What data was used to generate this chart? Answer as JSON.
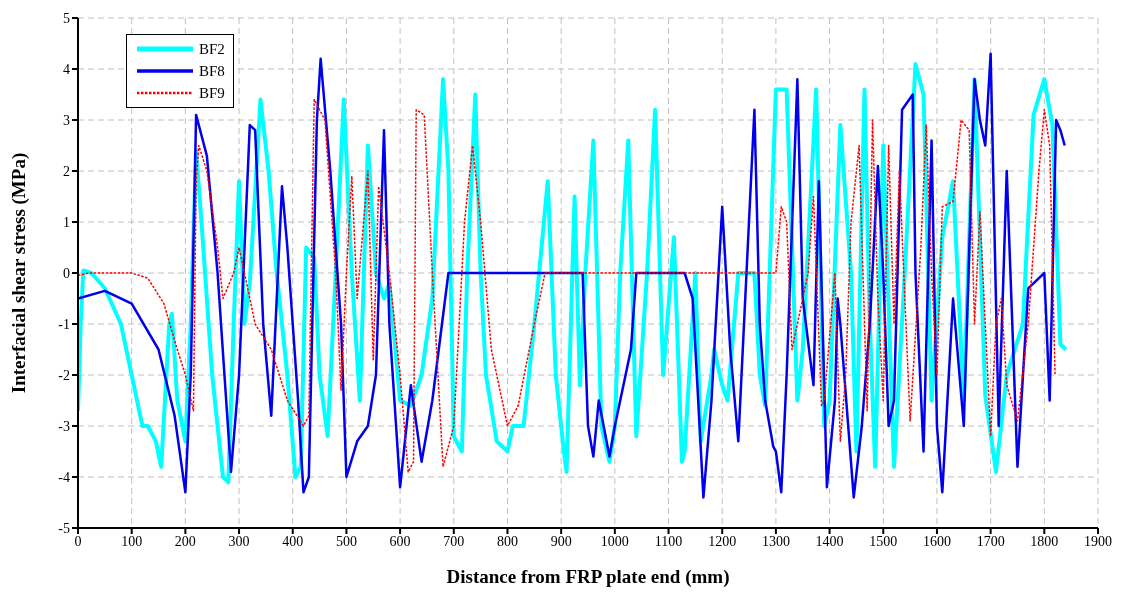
{
  "chart_data": {
    "type": "line",
    "xlabel": "Distance from FRP plate end (mm)",
    "ylabel": "Interfacial shear stress (MPa)",
    "xlim": [
      0,
      1900
    ],
    "xticks": [
      0,
      100,
      200,
      300,
      400,
      500,
      600,
      700,
      800,
      900,
      1000,
      1100,
      1200,
      1300,
      1400,
      1500,
      1600,
      1700,
      1800,
      1900
    ],
    "ylim": [
      -5,
      5
    ],
    "yticks": [
      -5,
      -4,
      -3,
      -2,
      -1,
      0,
      1,
      2,
      3,
      4,
      5
    ],
    "grid": true,
    "legend": "top left",
    "series": [
      {
        "name": "BF2",
        "color": "#00ffff",
        "line_style": "solid",
        "x": [
          0,
          5,
          10,
          25,
          50,
          80,
          100,
          120,
          130,
          145,
          155,
          170,
          175,
          185,
          200,
          210,
          220,
          230,
          250,
          270,
          280,
          290,
          300,
          310,
          320,
          340,
          355,
          370,
          390,
          405,
          415,
          425,
          440,
          450,
          465,
          480,
          495,
          510,
          525,
          540,
          555,
          570,
          580,
          600,
          620,
          640,
          660,
          680,
          690,
          700,
          715,
          725,
          740,
          750,
          760,
          780,
          800,
          810,
          830,
          850,
          875,
          890,
          905,
          910,
          925,
          935,
          945,
          960,
          975,
          990,
          1000,
          1010,
          1025,
          1040,
          1060,
          1075,
          1090,
          1110,
          1125,
          1130,
          1150,
          1160,
          1180,
          1185,
          1200,
          1210,
          1230,
          1260,
          1270,
          1280,
          1300,
          1320,
          1340,
          1350,
          1375,
          1390,
          1400,
          1420,
          1440,
          1450,
          1465,
          1475,
          1485,
          1500,
          1520,
          1540,
          1560,
          1575,
          1590,
          1610,
          1630,
          1650,
          1670,
          1690,
          1710,
          1730,
          1760,
          1780,
          1800,
          1815,
          1830,
          1840
        ],
        "values": [
          -2.7,
          -1,
          0.05,
          0,
          -0.3,
          -1,
          -2,
          -3,
          -3,
          -3.3,
          -3.8,
          -1,
          -0.8,
          -2.5,
          -3.3,
          -1,
          2.4,
          1,
          -2,
          -4,
          -4.1,
          -1,
          1.8,
          -1,
          -0.2,
          3.4,
          2,
          0,
          -2,
          -4,
          -3.8,
          0.5,
          0.3,
          -2,
          -3.2,
          0,
          3.4,
          0,
          -2.5,
          2.5,
          0,
          -0.5,
          -0.2,
          -2.5,
          -2.6,
          -2,
          -0.5,
          3.8,
          2,
          -3.2,
          -3.5,
          0,
          3.5,
          0,
          -2,
          -3.3,
          -3.5,
          -3,
          -3,
          -1,
          1.8,
          -2,
          -3.5,
          -3.9,
          1.5,
          -2.2,
          0,
          2.6,
          -3,
          -3.7,
          -3,
          0,
          2.6,
          -3.2,
          0,
          3.2,
          -2,
          0.7,
          -3.7,
          -3.5,
          0,
          -3.3,
          -2,
          -1.5,
          -2.2,
          -2.5,
          0,
          0,
          -2,
          -2.6,
          3.6,
          3.6,
          -2.5,
          -1.5,
          3.6,
          -3,
          -2.5,
          2.9,
          0,
          -3.5,
          3.6,
          -1,
          -3.8,
          2.5,
          -3.8,
          0,
          4.1,
          3.5,
          -2.5,
          0.7,
          1.8,
          -2.5,
          3.8,
          -2.4,
          -3.9,
          -2,
          -1,
          3.1,
          3.8,
          2.9,
          -1.4,
          -1.5
        ]
      },
      {
        "name": "BF8",
        "color": "#0000ee",
        "line_style": "solid",
        "x": [
          0,
          50,
          100,
          150,
          180,
          200,
          210,
          220,
          240,
          260,
          285,
          300,
          320,
          330,
          345,
          360,
          380,
          390,
          410,
          420,
          430,
          445,
          452,
          470,
          490,
          500,
          520,
          540,
          555,
          570,
          580,
          600,
          620,
          640,
          660,
          690,
          700,
          940,
          950,
          960,
          970,
          990,
          1000,
          1030,
          1040,
          1130,
          1145,
          1165,
          1180,
          1200,
          1215,
          1230,
          1260,
          1270,
          1280,
          1295,
          1300,
          1310,
          1320,
          1340,
          1350,
          1370,
          1380,
          1395,
          1410,
          1415,
          1420,
          1445,
          1460,
          1475,
          1490,
          1500,
          1510,
          1520,
          1535,
          1555,
          1560,
          1575,
          1590,
          1600,
          1610,
          1630,
          1650,
          1670,
          1680,
          1690,
          1700,
          1715,
          1730,
          1750,
          1770,
          1800,
          1810,
          1822,
          1830,
          1838
        ],
        "values": [
          -0.5,
          -0.35,
          -0.6,
          -1.5,
          -2.8,
          -4.3,
          -2,
          3.1,
          2.3,
          0,
          -3.9,
          -2,
          2.9,
          2.8,
          -1,
          -2.8,
          1.7,
          0.5,
          -2.5,
          -4.3,
          -4,
          3,
          4.2,
          2,
          -1,
          -4,
          -3.3,
          -3,
          -2,
          2.8,
          -1,
          -4.2,
          -2.2,
          -3.7,
          -2.5,
          0,
          0,
          0,
          -3,
          -3.6,
          -2.5,
          -3.6,
          -3,
          -1.5,
          0,
          0,
          -0.5,
          -4.4,
          -2.5,
          1.3,
          -1.5,
          -3.3,
          3.2,
          -1,
          -2.5,
          -3.4,
          -3.5,
          -4.3,
          -2,
          3.8,
          -0.5,
          -2.2,
          1.8,
          -4.2,
          -2.5,
          -0.5,
          -1,
          -4.4,
          -3,
          -1,
          2.1,
          0,
          -3,
          -2.5,
          3.2,
          3.5,
          0,
          -3.5,
          2.6,
          -3,
          -4.3,
          -0.5,
          -3,
          3.8,
          3,
          2.5,
          4.3,
          -3,
          2,
          -3.8,
          -0.3,
          0,
          -2.5,
          3,
          2.8,
          2.5
        ]
      },
      {
        "name": "BF9",
        "color": "#ff0000",
        "line_style": "dotted",
        "x": [
          0,
          20,
          100,
          130,
          160,
          185,
          200,
          215,
          220,
          225,
          240,
          260,
          270,
          290,
          300,
          330,
          360,
          390,
          420,
          430,
          440,
          460,
          480,
          490,
          500,
          510,
          520,
          540,
          550,
          560,
          580,
          600,
          615,
          625,
          630,
          645,
          660,
          680,
          700,
          720,
          735,
          750,
          770,
          800,
          820,
          850,
          870,
          1300,
          1310,
          1320,
          1330,
          1360,
          1370,
          1385,
          1390,
          1410,
          1420,
          1430,
          1440,
          1455,
          1470,
          1480,
          1490,
          1500,
          1510,
          1520,
          1530,
          1550,
          1570,
          1580,
          1590,
          1600,
          1610,
          1630,
          1645,
          1660,
          1670,
          1680,
          1700,
          1710,
          1720,
          1730,
          1750,
          1770,
          1790,
          1800,
          1810,
          1820
        ],
        "values": [
          -0.05,
          0,
          0,
          -0.1,
          -0.6,
          -1.5,
          -2,
          -2.7,
          1.8,
          2.5,
          2,
          0.5,
          -0.5,
          0,
          0.5,
          -1,
          -1.5,
          -2.5,
          -3,
          -2.8,
          3.4,
          3,
          0,
          -2.3,
          0,
          1.9,
          -0.5,
          2,
          -1.7,
          1.7,
          0,
          -2,
          -3.9,
          -3.7,
          3.2,
          3.1,
          0,
          -3.8,
          -3,
          1,
          2.5,
          1,
          -1.5,
          -3,
          -2.6,
          -1,
          0,
          0,
          1.3,
          1,
          -1.5,
          0,
          1.5,
          -2.6,
          -2.5,
          0,
          -3.3,
          -2,
          1,
          2.5,
          -2.7,
          3,
          -0.5,
          -2.5,
          2.5,
          -1,
          2,
          -2.9,
          0.5,
          2.9,
          0,
          -2,
          1.3,
          1.4,
          3,
          2.8,
          -1,
          1.2,
          -3.2,
          -1,
          -0.5,
          -2.2,
          -2.9,
          -1,
          2,
          3.2,
          2.5,
          -2
        ]
      }
    ]
  }
}
